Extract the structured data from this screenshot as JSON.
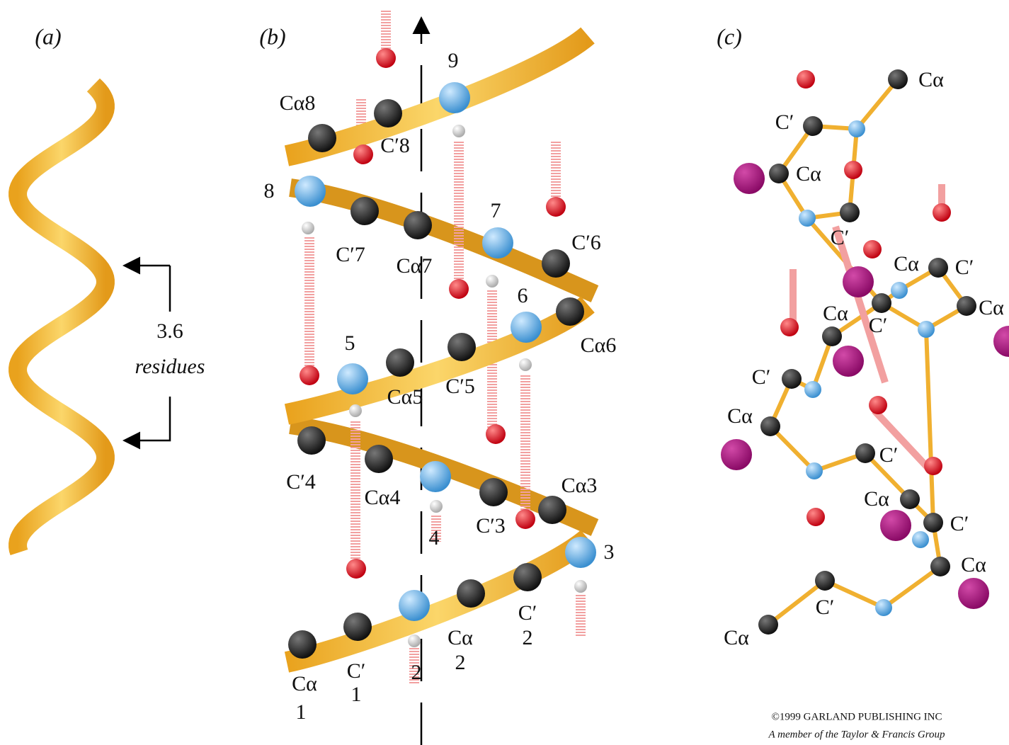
{
  "panel_a": {
    "label": "(a)",
    "rise": "3.6",
    "unit": "residues"
  },
  "panel_b": {
    "label": "(b)",
    "atom_labels": [
      "Cα8",
      "9",
      "C′8",
      "8",
      "7",
      "C′6",
      "C′7",
      "Cα7",
      "6",
      "5",
      "Cα6",
      "Cα5",
      "C′5",
      "C′4",
      "Cα4",
      "Cα3",
      "C′3",
      "4",
      "3",
      "C′",
      "2",
      "Cα",
      "2",
      "2",
      "Cα",
      "1",
      "C′",
      "1"
    ]
  },
  "panel_c": {
    "label": "(c)",
    "atom_labels": [
      "Cα",
      "C′",
      "Cα",
      "C′",
      "Cα",
      "C′",
      "Cα",
      "C′",
      "Cα",
      "C′",
      "Cα",
      "C′",
      "Cα",
      "C′",
      "Cα",
      "C′",
      "Cα"
    ]
  },
  "credit": {
    "copyright": "©1999 GARLAND PUBLISHING INC",
    "publisher": "A member of the Taylor & Francis Group"
  }
}
